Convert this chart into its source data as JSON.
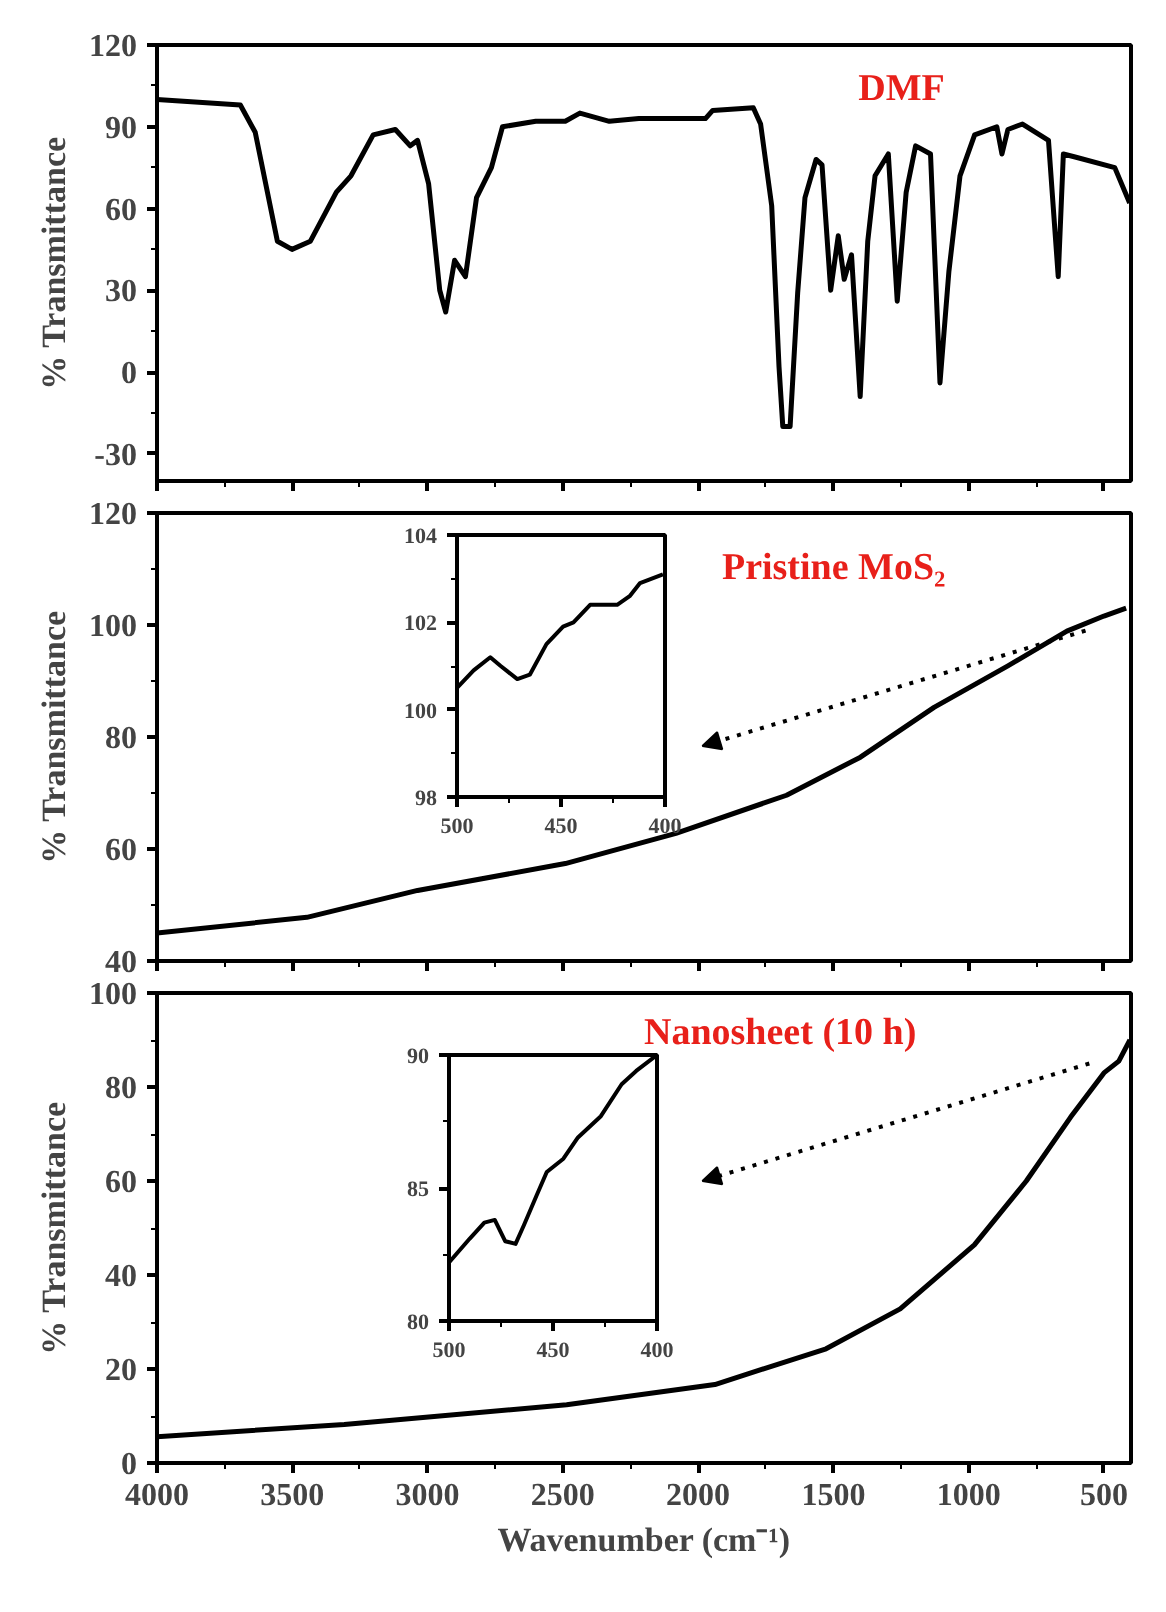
{
  "chart_data": [
    {
      "type": "line",
      "ylabel": "% Transmittance",
      "annotations": [
        "DMF"
      ],
      "xlim": [
        4000,
        400
      ],
      "xticks": [
        4000,
        3500,
        3000,
        2500,
        2000,
        1500,
        1000,
        500
      ],
      "ylim": [
        -40,
        120
      ],
      "yticks": [
        -30,
        0,
        30,
        60,
        90,
        120
      ],
      "tick_labels": "y",
      "series": [
        {
          "color": "#000000",
          "x": [
            4000,
            3692,
            3637,
            3555,
            3501,
            3433,
            3337,
            3283,
            3201,
            3119,
            3064,
            3037,
            2996,
            2955,
            2933,
            2900,
            2860,
            2819,
            2764,
            2723,
            2600,
            2491,
            2437,
            2328,
            2219,
            1973,
            1946,
            1796,
            1769,
            1728,
            1701,
            1687,
            1660,
            1632,
            1605,
            1564,
            1542,
            1510,
            1482,
            1460,
            1433,
            1401,
            1373,
            1346,
            1297,
            1264,
            1231,
            1196,
            1141,
            1106,
            1073,
            1032,
            978,
            896,
            877,
            855,
            801,
            705,
            669,
            650,
            610,
            460,
            405
          ],
          "values": [
            100,
            98,
            88,
            48,
            45,
            48,
            66,
            72,
            87,
            89,
            83,
            85,
            69,
            30,
            22,
            41,
            35,
            64,
            75,
            90,
            92,
            92,
            95,
            92,
            93,
            93,
            96,
            97,
            91,
            61,
            2,
            -20,
            -20,
            29,
            64,
            78,
            76,
            30,
            50,
            34,
            43,
            -9,
            48,
            72,
            80,
            26,
            66,
            83,
            80,
            -4,
            37,
            72,
            87,
            90,
            80,
            89,
            91,
            85,
            35,
            80,
            79,
            75,
            62
          ]
        }
      ]
    },
    {
      "type": "line",
      "ylabel": "% Transmittance",
      "annotations": [
        "Pristine MoS₂"
      ],
      "xlim": [
        4000,
        400
      ],
      "xticks": [
        4000,
        3500,
        3000,
        2500,
        2000,
        1500,
        1000,
        500
      ],
      "ylim": [
        40,
        120
      ],
      "yticks": [
        40,
        60,
        80,
        100,
        120
      ],
      "tick_labels": "y",
      "series": [
        {
          "color": "#000000",
          "x": [
            4000,
            3446,
            3037,
            2491,
            2082,
            1673,
            1400,
            1128,
            855,
            637,
            500,
            418
          ],
          "values": [
            45,
            47.8,
            52.6,
            57.4,
            62.8,
            69.6,
            76.4,
            85.3,
            92.7,
            98.9,
            101.6,
            103
          ]
        }
      ]
    },
    {
      "type": "line",
      "xlim": [
        500,
        400
      ],
      "xticks": [
        500,
        450,
        400
      ],
      "ylim": [
        98,
        104
      ],
      "yticks": [
        98,
        100,
        102,
        104
      ],
      "series": [
        {
          "color": "#000000",
          "x": [
            500,
            492,
            484,
            479,
            471,
            465,
            457,
            449,
            444,
            436,
            423,
            417,
            412,
            401
          ],
          "values": [
            100.5,
            100.9,
            101.2,
            101.0,
            100.7,
            100.8,
            101.5,
            101.9,
            102.0,
            102.4,
            102.4,
            102.6,
            102.9,
            103.1
          ]
        }
      ]
    },
    {
      "type": "line",
      "ylabel": "% Transmittance",
      "xlabel": "Wavenumber (cm⁻¹)",
      "annotations": [
        "Nanosheet (10 h)"
      ],
      "xlim": [
        4000,
        400
      ],
      "xticks": [
        4000,
        3500,
        3000,
        2500,
        2000,
        1500,
        1000,
        500
      ],
      "ylim": [
        0,
        100
      ],
      "yticks": [
        0,
        20,
        40,
        60,
        80,
        100
      ],
      "series": [
        {
          "color": "#000000",
          "x": [
            4000,
            3308,
            2486,
            1938,
            1527,
            1253,
            979,
            787,
            623,
            500,
            445,
            404
          ],
          "values": [
            5.6,
            8.2,
            12.4,
            16.7,
            24.3,
            32.8,
            46.4,
            60,
            73.6,
            83,
            85.5,
            90
          ]
        }
      ]
    },
    {
      "type": "line",
      "xlim": [
        500,
        400
      ],
      "xticks": [
        500,
        450,
        400
      ],
      "ylim": [
        80,
        90
      ],
      "yticks": [
        80,
        85,
        90
      ],
      "series": [
        {
          "color": "#000000",
          "x": [
            500,
            490,
            483,
            478,
            473,
            468,
            464,
            458,
            453,
            445,
            438,
            427,
            417,
            410,
            400
          ],
          "values": [
            82.2,
            83.1,
            83.7,
            83.8,
            83.0,
            82.9,
            83.6,
            84.7,
            85.6,
            86.1,
            86.9,
            87.7,
            88.9,
            89.4,
            90
          ]
        }
      ]
    }
  ]
}
